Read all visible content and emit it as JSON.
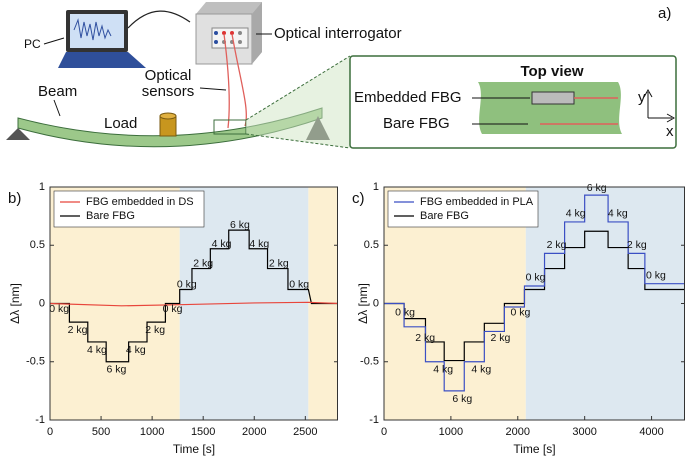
{
  "diagram": {
    "panel": "a)",
    "pc": "PC",
    "interrogator": "Optical interrogator",
    "beam": "Beam",
    "sensors": [
      "Optical",
      "sensors"
    ],
    "load": "Load",
    "top_view": "Top view",
    "embedded": "Embedded FBG",
    "bare": "Bare FBG",
    "axis_y": "y",
    "axis_x": "x"
  },
  "chart_data": [
    {
      "type": "line",
      "panel": "b)",
      "xlabel": "Time [s]",
      "ylabel": "Δλ [nm]",
      "xlim": [
        0,
        2820
      ],
      "ylim": [
        -1,
        1
      ],
      "xticks": [
        0,
        500,
        1000,
        1500,
        2000,
        2500
      ],
      "yticks": [
        -1,
        -0.5,
        0,
        0.5,
        1
      ],
      "legend": "upper left",
      "regions": [
        {
          "from": 0,
          "to": 1270,
          "color": "#fcf0d2"
        },
        {
          "from": 1270,
          "to": 2530,
          "color": "#dde8f0"
        },
        {
          "from": 2530,
          "to": 2820,
          "color": "#fcf0d2"
        }
      ],
      "series": [
        {
          "name": "FBG embedded in DS",
          "color": "#e8463c",
          "x": [
            0,
            700,
            1270,
            2000,
            2530,
            2820
          ],
          "values": [
            0,
            -0.02,
            -0.01,
            0.005,
            0.01,
            0
          ]
        },
        {
          "name": "Bare FBG",
          "color": "#000000",
          "x": [
            0,
            190,
            190,
            370,
            370,
            550,
            550,
            770,
            770,
            950,
            950,
            1130,
            1130,
            1270,
            1270,
            1390,
            1390,
            1570,
            1570,
            1750,
            1750,
            1950,
            1950,
            2130,
            2130,
            2330,
            2330,
            2530,
            2560,
            2820
          ],
          "values": [
            0,
            0,
            -0.16,
            -0.16,
            -0.33,
            -0.33,
            -0.5,
            -0.5,
            -0.33,
            -0.33,
            -0.16,
            -0.16,
            0,
            0,
            0.12,
            0.12,
            0.3,
            0.3,
            0.47,
            0.47,
            0.63,
            0.63,
            0.47,
            0.47,
            0.3,
            0.3,
            0.12,
            0.12,
            0,
            0
          ]
        }
      ],
      "annotations": [
        {
          "text": "0 kg",
          "x": 90,
          "y": -0.05
        },
        {
          "text": "2 kg",
          "x": 270,
          "y": -0.23
        },
        {
          "text": "4 kg",
          "x": 460,
          "y": -0.4
        },
        {
          "text": "6 kg",
          "x": 650,
          "y": -0.57
        },
        {
          "text": "4 kg",
          "x": 840,
          "y": -0.4
        },
        {
          "text": "2 kg",
          "x": 1030,
          "y": -0.23
        },
        {
          "text": "0 kg",
          "x": 1200,
          "y": -0.05
        },
        {
          "text": "0 kg",
          "x": 1340,
          "y": 0.16
        },
        {
          "text": "2 kg",
          "x": 1500,
          "y": 0.34
        },
        {
          "text": "4 kg",
          "x": 1680,
          "y": 0.51
        },
        {
          "text": "6 kg",
          "x": 1860,
          "y": 0.67
        },
        {
          "text": "4 kg",
          "x": 2050,
          "y": 0.51
        },
        {
          "text": "2 kg",
          "x": 2240,
          "y": 0.34
        },
        {
          "text": "0 kg",
          "x": 2440,
          "y": 0.16
        }
      ]
    },
    {
      "type": "line",
      "panel": "c)",
      "xlabel": "Time [s]",
      "ylabel": "Δλ [nm]",
      "xlim": [
        0,
        4500
      ],
      "ylim": [
        -1,
        1
      ],
      "xticks": [
        0,
        1000,
        2000,
        3000,
        4000
      ],
      "yticks": [
        -1,
        -0.5,
        0,
        0.5,
        1
      ],
      "legend": "upper left",
      "regions": [
        {
          "from": 0,
          "to": 2120,
          "color": "#fcf0d2"
        },
        {
          "from": 2120,
          "to": 4500,
          "color": "#dde8f0"
        }
      ],
      "series": [
        {
          "name": "FBG embedded in PLA",
          "color": "#3b4fc4",
          "x": [
            0,
            300,
            300,
            620,
            620,
            900,
            900,
            1200,
            1200,
            1500,
            1500,
            1800,
            1800,
            2100,
            2100,
            2400,
            2400,
            2700,
            2700,
            3000,
            3000,
            3350,
            3350,
            3650,
            3650,
            3900,
            3900,
            4500
          ],
          "values": [
            0,
            0,
            -0.2,
            -0.2,
            -0.5,
            -0.5,
            -0.75,
            -0.75,
            -0.5,
            -0.5,
            -0.24,
            -0.24,
            -0.03,
            -0.03,
            0.15,
            0.15,
            0.43,
            0.43,
            0.7,
            0.7,
            0.93,
            0.93,
            0.7,
            0.7,
            0.43,
            0.43,
            0.17,
            0.17
          ]
        },
        {
          "name": "Bare FBG",
          "color": "#000000",
          "x": [
            0,
            300,
            300,
            620,
            620,
            900,
            900,
            1200,
            1200,
            1500,
            1500,
            1800,
            1800,
            2100,
            2100,
            2400,
            2400,
            2700,
            2700,
            3000,
            3000,
            3350,
            3350,
            3650,
            3650,
            3900,
            3900,
            4500
          ],
          "values": [
            0,
            0,
            -0.13,
            -0.13,
            -0.33,
            -0.33,
            -0.49,
            -0.49,
            -0.33,
            -0.33,
            -0.17,
            -0.17,
            0,
            0,
            0.12,
            0.12,
            0.3,
            0.3,
            0.48,
            0.48,
            0.62,
            0.62,
            0.48,
            0.48,
            0.3,
            0.3,
            0.12,
            0.12
          ]
        }
      ],
      "annotations": [
        {
          "text": "0 kg",
          "x": 315,
          "y": -0.08
        },
        {
          "text": "2 kg",
          "x": 615,
          "y": -0.3
        },
        {
          "text": "4 kg",
          "x": 885,
          "y": -0.57
        },
        {
          "text": "6 kg",
          "x": 1170,
          "y": -0.82
        },
        {
          "text": "4 kg",
          "x": 1455,
          "y": -0.57
        },
        {
          "text": "2 kg",
          "x": 1740,
          "y": -0.3
        },
        {
          "text": "0 kg",
          "x": 2040,
          "y": -0.08
        },
        {
          "text": "0 kg",
          "x": 2265,
          "y": 0.22
        },
        {
          "text": "2 kg",
          "x": 2580,
          "y": 0.5
        },
        {
          "text": "4 kg",
          "x": 2865,
          "y": 0.77
        },
        {
          "text": "6 kg",
          "x": 3180,
          "y": 0.99
        },
        {
          "text": "4 kg",
          "x": 3495,
          "y": 0.77
        },
        {
          "text": "2 kg",
          "x": 3780,
          "y": 0.5
        },
        {
          "text": "0 kg",
          "x": 4065,
          "y": 0.24
        }
      ]
    }
  ]
}
